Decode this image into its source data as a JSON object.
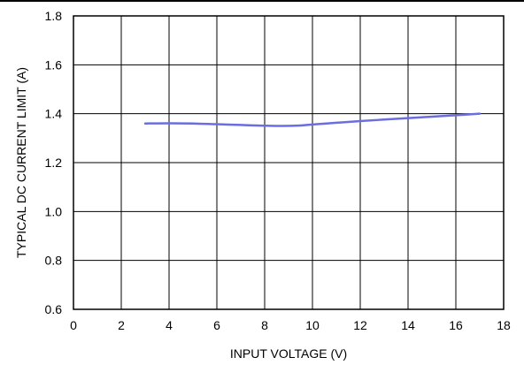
{
  "chart_data": {
    "type": "line",
    "title": "",
    "xlabel": "INPUT VOLTAGE (V)",
    "ylabel": "TYPICAL DC CURRENT LIMIT (A)",
    "xlim": [
      0,
      18
    ],
    "ylim": [
      0.6,
      1.8
    ],
    "x_ticks": [
      0,
      2,
      4,
      6,
      8,
      10,
      12,
      14,
      16,
      18
    ],
    "y_ticks": [
      0.6,
      0.8,
      1.0,
      1.2,
      1.4,
      1.6,
      1.8
    ],
    "x_tick_labels": [
      "0",
      "2",
      "4",
      "6",
      "8",
      "10",
      "12",
      "14",
      "16",
      "18"
    ],
    "y_tick_labels": [
      "0.6",
      "0.8",
      "1.0",
      "1.2",
      "1.4",
      "1.6",
      "1.8"
    ],
    "grid": true,
    "legend": "none",
    "series": [
      {
        "color": "#6a6ee0",
        "x": [
          3,
          4,
          5,
          6,
          7,
          8,
          8.7,
          9.5,
          10,
          11,
          12,
          13,
          14,
          15,
          16,
          17
        ],
        "y": [
          1.36,
          1.361,
          1.36,
          1.357,
          1.354,
          1.351,
          1.35,
          1.352,
          1.356,
          1.363,
          1.37,
          1.376,
          1.382,
          1.388,
          1.394,
          1.4
        ]
      }
    ]
  }
}
